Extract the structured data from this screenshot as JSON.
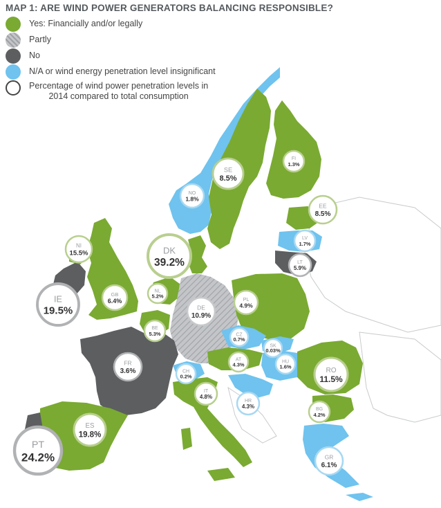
{
  "title": "MAP 1: ARE WIND POWER GENERATORS BALANCING RESPONSIBLE?",
  "legend": [
    {
      "id": "yes",
      "label": "Yes: Financially and/or legally",
      "color": "#7aaa32"
    },
    {
      "id": "partly",
      "label": "Partly",
      "color": "#b4b6b9"
    },
    {
      "id": "no",
      "label": "No",
      "color": "#5c5e60"
    },
    {
      "id": "na",
      "label": "N/A or wind energy penetration level insignificant",
      "color": "#6fc3ee"
    },
    {
      "id": "pct",
      "label_line1": "Percentage of wind power penetration levels in",
      "label_line2": "2014 compared to total consumption",
      "color": "#ffffff"
    }
  ],
  "countries": [
    {
      "code": "SE",
      "pct": "8.5%",
      "status": "yes"
    },
    {
      "code": "FI",
      "pct": "1.3%",
      "status": "yes"
    },
    {
      "code": "NO",
      "pct": "1.8%",
      "status": "na"
    },
    {
      "code": "EE",
      "pct": "8.5%",
      "status": "yes"
    },
    {
      "code": "LV",
      "pct": "1.7%",
      "status": "na"
    },
    {
      "code": "LT",
      "pct": "5.9%",
      "status": "no"
    },
    {
      "code": "NI",
      "pct": "15.5%",
      "status": "yes"
    },
    {
      "code": "DK",
      "pct": "39.2%",
      "status": "yes"
    },
    {
      "code": "GB",
      "pct": "6.4%",
      "status": "yes"
    },
    {
      "code": "IE",
      "pct": "19.5%",
      "status": "no"
    },
    {
      "code": "NL",
      "pct": "5.2%",
      "status": "yes"
    },
    {
      "code": "PL",
      "pct": "4.9%",
      "status": "yes"
    },
    {
      "code": "DE",
      "pct": "10.9%",
      "status": "partly"
    },
    {
      "code": "BE",
      "pct": "5.3%",
      "status": "yes"
    },
    {
      "code": "CZ",
      "pct": "0.7%",
      "status": "na"
    },
    {
      "code": "SK",
      "pct": "0.03%",
      "status": "na"
    },
    {
      "code": "FR",
      "pct": "3.6%",
      "status": "no"
    },
    {
      "code": "AT",
      "pct": "4.3%",
      "status": "yes"
    },
    {
      "code": "HU",
      "pct": "1.6%",
      "status": "na"
    },
    {
      "code": "RO",
      "pct": "11.5%",
      "status": "yes"
    },
    {
      "code": "CH",
      "pct": "0.2%",
      "status": "na"
    },
    {
      "code": "IT",
      "pct": "4.8%",
      "status": "yes"
    },
    {
      "code": "HR",
      "pct": "4.3%",
      "status": "na"
    },
    {
      "code": "BG",
      "pct": "4.2%",
      "status": "yes"
    },
    {
      "code": "ES",
      "pct": "19.8%",
      "status": "yes"
    },
    {
      "code": "PT",
      "pct": "24.2%",
      "status": "no"
    },
    {
      "code": "GR",
      "pct": "6.1%",
      "status": "na"
    }
  ]
}
